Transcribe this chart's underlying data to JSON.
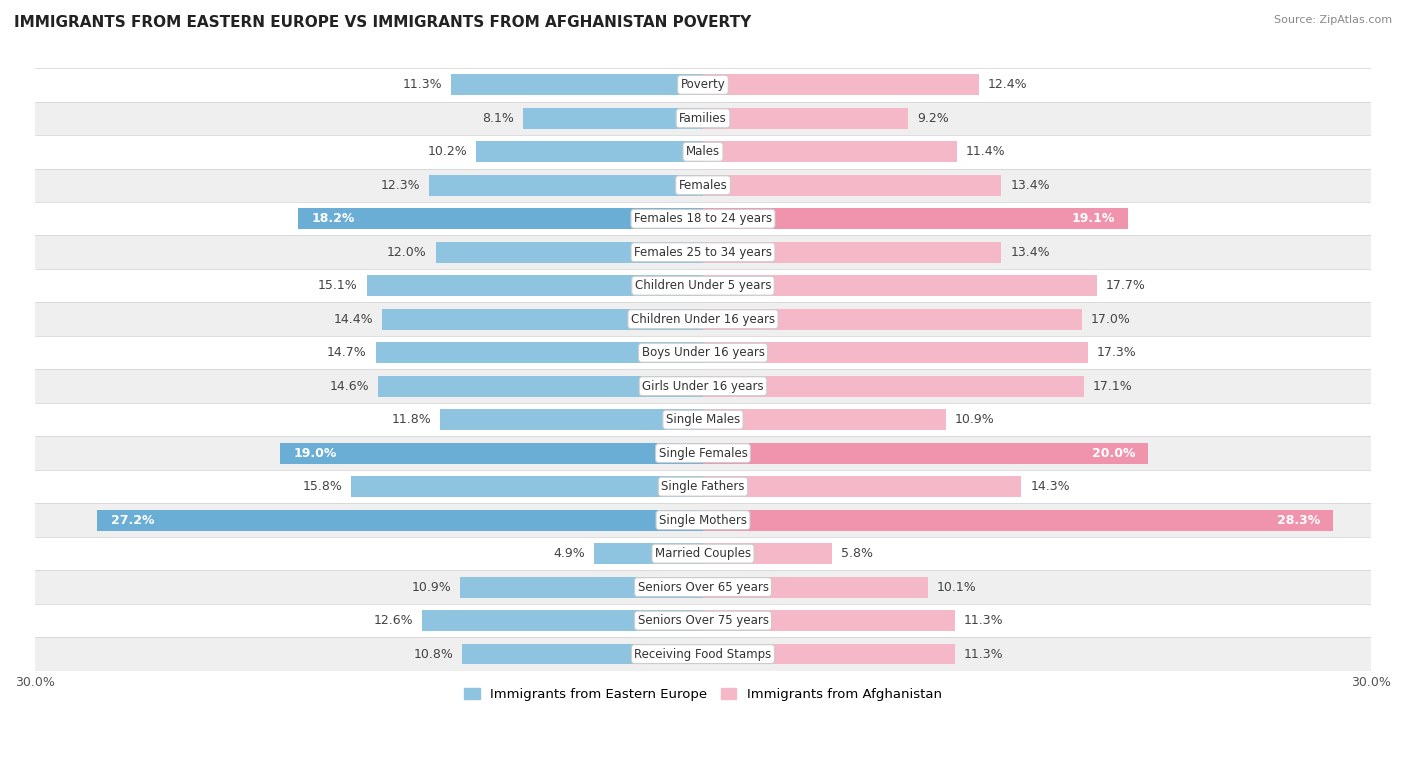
{
  "title": "IMMIGRANTS FROM EASTERN EUROPE VS IMMIGRANTS FROM AFGHANISTAN POVERTY",
  "source": "Source: ZipAtlas.com",
  "categories": [
    "Poverty",
    "Families",
    "Males",
    "Females",
    "Females 18 to 24 years",
    "Females 25 to 34 years",
    "Children Under 5 years",
    "Children Under 16 years",
    "Boys Under 16 years",
    "Girls Under 16 years",
    "Single Males",
    "Single Females",
    "Single Fathers",
    "Single Mothers",
    "Married Couples",
    "Seniors Over 65 years",
    "Seniors Over 75 years",
    "Receiving Food Stamps"
  ],
  "eastern_europe": [
    11.3,
    8.1,
    10.2,
    12.3,
    18.2,
    12.0,
    15.1,
    14.4,
    14.7,
    14.6,
    11.8,
    19.0,
    15.8,
    27.2,
    4.9,
    10.9,
    12.6,
    10.8
  ],
  "afghanistan": [
    12.4,
    9.2,
    11.4,
    13.4,
    19.1,
    13.4,
    17.7,
    17.0,
    17.3,
    17.1,
    10.9,
    20.0,
    14.3,
    28.3,
    5.8,
    10.1,
    11.3,
    11.3
  ],
  "eastern_europe_highlight": [
    false,
    false,
    false,
    false,
    true,
    false,
    false,
    false,
    false,
    false,
    false,
    true,
    false,
    true,
    false,
    false,
    false,
    false
  ],
  "afghanistan_highlight": [
    false,
    false,
    false,
    false,
    true,
    false,
    false,
    false,
    false,
    false,
    false,
    true,
    false,
    true,
    false,
    false,
    false,
    false
  ],
  "color_eastern": "#8ec4e0",
  "color_eastern_highlight": "#6aadd5",
  "color_afghanistan": "#f5b8c8",
  "color_afghanistan_highlight": "#f094ae",
  "bar_height": 0.62,
  "xlim": 30.0,
  "legend_label_eastern": "Immigrants from Eastern Europe",
  "legend_label_afghanistan": "Immigrants from Afghanistan",
  "background_row_light": "#efefef",
  "background_row_white": "#ffffff",
  "title_fontsize": 11,
  "label_fontsize": 9,
  "cat_fontsize": 8.5
}
